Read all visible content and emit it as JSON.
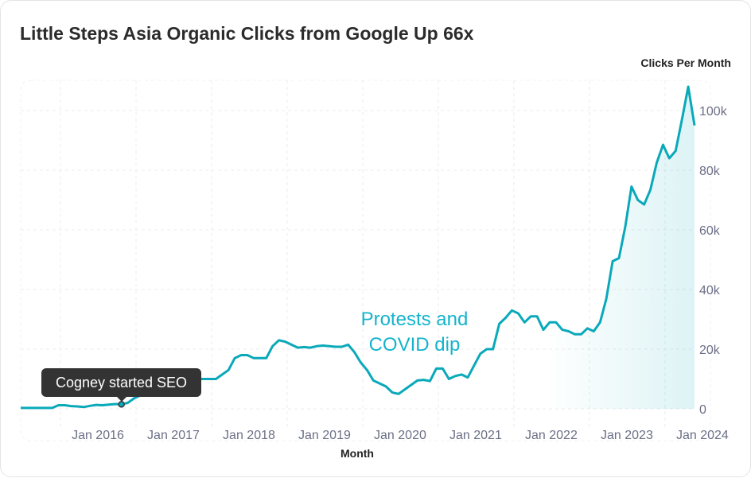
{
  "chart_data": {
    "type": "line",
    "title": "Little Steps Asia Organic Clicks from Google Up 66x",
    "xlabel": "Month",
    "ylabel": "Clicks Per Month",
    "ylim": [
      0,
      110000
    ],
    "yticks": [
      0,
      20000,
      40000,
      60000,
      80000,
      100000
    ],
    "ytick_labels": [
      "0",
      "20k",
      "40k",
      "60k",
      "80k",
      "100k"
    ],
    "xticks": [
      "2016-01",
      "2017-01",
      "2018-01",
      "2019-01",
      "2020-01",
      "2021-01",
      "2022-01",
      "2023-01",
      "2024-01"
    ],
    "xtick_labels": [
      "Jan 2016",
      "Jan 2017",
      "Jan 2018",
      "Jan 2019",
      "Jan 2020",
      "Jan 2021",
      "Jan 2022",
      "Jan 2023",
      "Jan 2024"
    ],
    "grid": true,
    "color": "#0aa9ba",
    "x": [
      "2015-01",
      "2015-02",
      "2015-03",
      "2015-04",
      "2015-05",
      "2015-06",
      "2015-07",
      "2015-08",
      "2015-09",
      "2015-10",
      "2015-11",
      "2015-12",
      "2016-01",
      "2016-02",
      "2016-03",
      "2016-04",
      "2016-05",
      "2016-06",
      "2016-07",
      "2016-08",
      "2016-09",
      "2016-10",
      "2016-11",
      "2016-12",
      "2017-01",
      "2017-02",
      "2017-03",
      "2017-04",
      "2017-05",
      "2017-06",
      "2017-07",
      "2017-08",
      "2017-09",
      "2017-10",
      "2017-11",
      "2017-12",
      "2018-01",
      "2018-02",
      "2018-03",
      "2018-04",
      "2018-05",
      "2018-06",
      "2018-07",
      "2018-08",
      "2018-09",
      "2018-10",
      "2018-11",
      "2018-12",
      "2019-01",
      "2019-02",
      "2019-03",
      "2019-04",
      "2019-05",
      "2019-06",
      "2019-07",
      "2019-08",
      "2019-09",
      "2019-10",
      "2019-11",
      "2019-12",
      "2020-01",
      "2020-02",
      "2020-03",
      "2020-04",
      "2020-05",
      "2020-06",
      "2020-07",
      "2020-08",
      "2020-09",
      "2020-10",
      "2020-11",
      "2020-12",
      "2021-01",
      "2021-02",
      "2021-03",
      "2021-04",
      "2021-05",
      "2021-06",
      "2021-07",
      "2021-08",
      "2021-09",
      "2021-10",
      "2021-11",
      "2021-12",
      "2022-01",
      "2022-02",
      "2022-03",
      "2022-04",
      "2022-05",
      "2022-06",
      "2022-07",
      "2022-08",
      "2022-09",
      "2022-10",
      "2022-11",
      "2022-12",
      "2023-01",
      "2023-02",
      "2023-03",
      "2023-04",
      "2023-05",
      "2023-06",
      "2023-07",
      "2023-08",
      "2023-09",
      "2023-10",
      "2023-11",
      "2023-12"
    ],
    "values": [
      300,
      300,
      300,
      300,
      300,
      300,
      1200,
      1200,
      900,
      800,
      600,
      1000,
      1300,
      1200,
      1400,
      1600,
      1500,
      2000,
      3500,
      4500,
      5500,
      7000,
      8500,
      9500,
      10000,
      10000,
      10000,
      10200,
      10000,
      10000,
      10000,
      10000,
      11500,
      13000,
      17000,
      18000,
      18000,
      17000,
      17000,
      17000,
      21000,
      23000,
      22500,
      21500,
      20500,
      20700,
      20500,
      21000,
      21200,
      21000,
      20800,
      20800,
      21500,
      19000,
      15500,
      13000,
      9500,
      8500,
      7500,
      5500,
      5000,
      6500,
      8000,
      9500,
      9700,
      9300,
      13500,
      13500,
      10000,
      11000,
      11500,
      10500,
      14500,
      18500,
      20000,
      20000,
      28500,
      30500,
      33000,
      32000,
      29000,
      31000,
      31000,
      26500,
      29000,
      29000,
      26500,
      26000,
      25000,
      25000,
      27000,
      26000,
      29000,
      37000,
      49500,
      50500,
      61000,
      74500,
      70000,
      68500,
      73500,
      82500,
      88500,
      84000,
      86500,
      97000,
      108000,
      95000
    ],
    "annotations": [
      {
        "label": "Cogney started SEO",
        "x": "2016-05",
        "style": "tooltip"
      },
      {
        "lines": [
          "Protests and",
          "COVID dip"
        ],
        "x": "2020-01",
        "style": "text"
      }
    ]
  }
}
